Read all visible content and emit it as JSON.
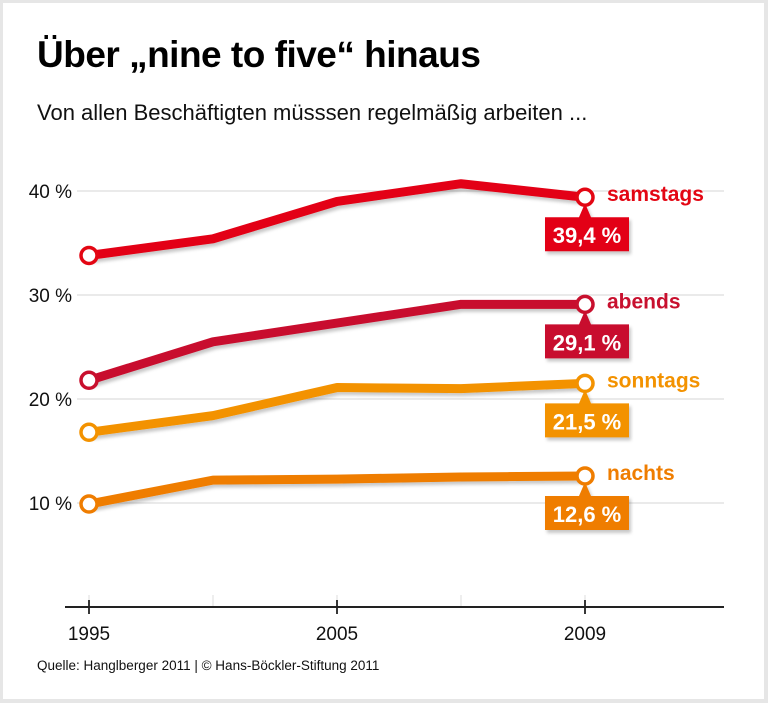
{
  "chart_data": {
    "type": "line",
    "title": "Über „nine to five“ hinaus",
    "subtitle": "Von allen Beschäftigten müsssen regelmäßig arbeiten  ...",
    "source": "Quelle: Hanglberger 2011 | © Hans-Böckler-Stiftung 2011",
    "xlabel": "",
    "ylabel": "",
    "x": [
      1995,
      2000,
      2005,
      2007,
      2009
    ],
    "x_tick_labels": [
      {
        "x": 1995,
        "label": "1995"
      },
      {
        "x": 2005,
        "label": "2005"
      },
      {
        "x": 2009,
        "label": "2009"
      }
    ],
    "y_ticks": [
      {
        "value": 10,
        "label": "10 %"
      },
      {
        "value": 20,
        "label": "20 %"
      },
      {
        "value": 30,
        "label": "30 %"
      },
      {
        "value": 40,
        "label": "40 %"
      }
    ],
    "ylim": [
      0,
      40
    ],
    "grid": true,
    "legend": "end-of-line labels (right)",
    "series": [
      {
        "name": "samstags",
        "color": "#e30613",
        "values": [
          33.8,
          35.4,
          39.0,
          40.7,
          39.4
        ],
        "end_label": "39,4 %"
      },
      {
        "name": "abends",
        "color": "#c8102e",
        "values": [
          21.8,
          25.5,
          27.3,
          29.1,
          29.1
        ],
        "end_label": "29,1 %"
      },
      {
        "name": "sonntags",
        "color": "#f39200",
        "values": [
          16.8,
          18.4,
          21.1,
          21.0,
          21.5
        ],
        "end_label": "21,5 %"
      },
      {
        "name": "nachts",
        "color": "#ef7d00",
        "values": [
          9.9,
          12.2,
          12.3,
          12.5,
          12.6
        ],
        "end_label": "12,6 %"
      }
    ]
  }
}
